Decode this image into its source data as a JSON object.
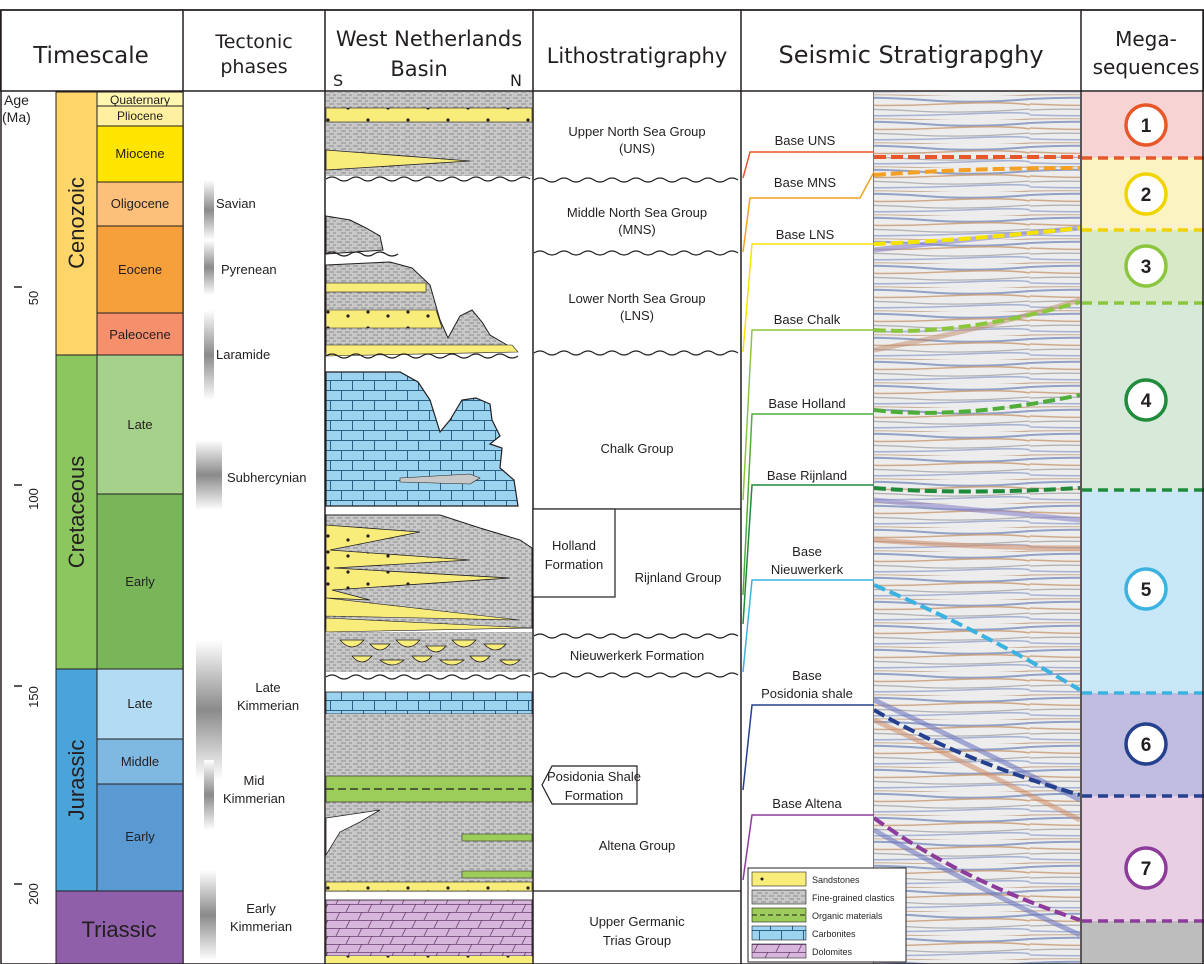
{
  "headers": {
    "timescale": "Timescale",
    "tectonic_line1": "Tectonic",
    "tectonic_line2": "phases",
    "basin_line1": "West Netherlands",
    "basin_line2": "Basin",
    "basin_south": "S",
    "basin_north": "N",
    "litho": "Lithostratigraphy",
    "seismic": "Seismic Stratigrapghy",
    "mega_line1": "Mega-",
    "mega_line2": "sequences"
  },
  "age_axis": {
    "label_line1": "Age",
    "label_line2": "(Ma)",
    "ticks": [
      "50",
      "100",
      "150",
      "200"
    ]
  },
  "eras": [
    {
      "name": "Cenozoic",
      "color": "#fdd568"
    },
    {
      "name": "Cretaceous",
      "color": "#8cc65e"
    },
    {
      "name": "Jurassic",
      "color": "#4aa3d9"
    },
    {
      "name": "Triassic",
      "color": "#8f60a9"
    }
  ],
  "epochs": [
    {
      "name": "Quaternary",
      "color": "#fff6b0"
    },
    {
      "name": "Pliocene",
      "color": "#fff0a0"
    },
    {
      "name": "Miocene",
      "color": "#ffe500"
    },
    {
      "name": "Oligocene",
      "color": "#fdc07a"
    },
    {
      "name": "Eocene",
      "color": "#f6a03c"
    },
    {
      "name": "Paleocene",
      "color": "#f58f6c"
    },
    {
      "name": "Late",
      "color": "#a6d18a"
    },
    {
      "name": "Early",
      "color": "#79b65a"
    },
    {
      "name": "Late",
      "color": "#b3dcf4"
    },
    {
      "name": "Middle",
      "color": "#7fb9e2"
    },
    {
      "name": "Early",
      "color": "#5b99d3"
    }
  ],
  "tectonic_phases": [
    {
      "line1": "Savian",
      "line2": ""
    },
    {
      "line1": "Pyrenean",
      "line2": ""
    },
    {
      "line1": "Laramide",
      "line2": ""
    },
    {
      "line1": "Subhercynian",
      "line2": ""
    },
    {
      "line1": "Late",
      "line2": "Kimmerian"
    },
    {
      "line1": "Mid",
      "line2": "Kimmerian"
    },
    {
      "line1": "Early",
      "line2": "Kimmerian"
    }
  ],
  "lithostratigraphy": [
    {
      "line1": "Upper North Sea Group",
      "line2": "(UNS)"
    },
    {
      "line1": "Middle North Sea Group",
      "line2": "(MNS)"
    },
    {
      "line1": "Lower North Sea Group",
      "line2": "(LNS)"
    },
    {
      "line1": "Chalk Group",
      "line2": ""
    },
    {
      "line1": "Holland",
      "line2": "Formation"
    },
    {
      "line1": "Rijnland Group",
      "line2": ""
    },
    {
      "line1": "Nieuwerkerk Formation",
      "line2": ""
    },
    {
      "line1": "Posidonia Shale",
      "line2": "Formation"
    },
    {
      "line1": "Altena Group",
      "line2": ""
    },
    {
      "line1": "Upper Germanic",
      "line2": "Trias Group"
    }
  ],
  "seismic_horizons": [
    {
      "line1": "Base UNS",
      "line2": "",
      "color": "#e8572a"
    },
    {
      "line1": "Base MNS",
      "line2": "",
      "color": "#f3a024"
    },
    {
      "line1": "Base LNS",
      "line2": "",
      "color": "#f5e400"
    },
    {
      "line1": "Base Chalk",
      "line2": "",
      "color": "#8cc63f"
    },
    {
      "line1": "Base Holland",
      "line2": "",
      "color": "#4fae3a"
    },
    {
      "line1": "Base Rijnland",
      "line2": "",
      "color": "#1f8a3a"
    },
    {
      "line1": "Base",
      "line2": "Nieuwerkerk",
      "color": "#3cb2e0"
    },
    {
      "line1": "Base",
      "line2": "Posidonia shale",
      "color": "#24408e"
    },
    {
      "line1": "Base Altena",
      "line2": "",
      "color": "#8e3c9c"
    }
  ],
  "megasequences": [
    {
      "label": "1",
      "color": "#e8572a",
      "fill": "#f8d3d3"
    },
    {
      "label": "2",
      "color": "#f0d400",
      "fill": "#fbf3c2"
    },
    {
      "label": "3",
      "color": "#8cc63f",
      "fill": "#d8e9c8"
    },
    {
      "label": "4",
      "color": "#1e8c3a",
      "fill": "#d7ead9"
    },
    {
      "label": "5",
      "color": "#3cb2e0",
      "fill": "#c8e8f8"
    },
    {
      "label": "6",
      "color": "#24408e",
      "fill": "#c0bde0"
    },
    {
      "label": "7",
      "color": "#8e3c9c",
      "fill": "#e8cfe4"
    }
  ],
  "legend": [
    {
      "label": "Sandstones",
      "key": "sand"
    },
    {
      "label": "Fine-grained clastics",
      "key": "shale"
    },
    {
      "label": "Organic materials",
      "key": "organic"
    },
    {
      "label": "Carbonites",
      "key": "carb"
    },
    {
      "label": "Dolomites",
      "key": "dolo"
    }
  ],
  "colors": {
    "sandstone": "#f8ec7a",
    "carbonate": "#9cd3ee",
    "dolomite": "#d7b6dc",
    "organic": "#9ccc5a",
    "shale": "#c4c4c4",
    "megaseq_bottom": "#bdbdbd"
  }
}
